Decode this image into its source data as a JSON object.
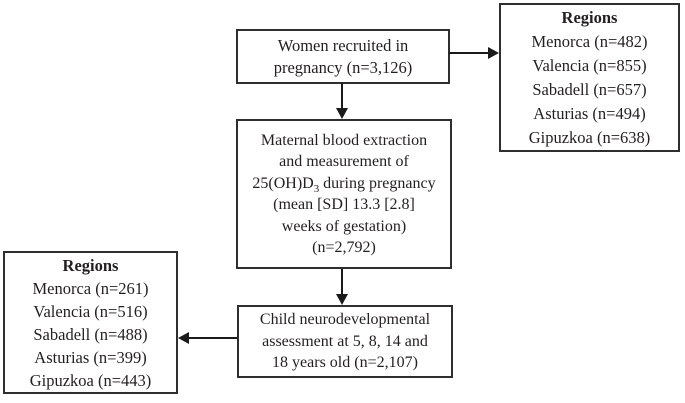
{
  "colors": {
    "text": "#231f20",
    "box_border": "#2e2e2e",
    "arrow": "#1a1a1a",
    "background": "#ffffff"
  },
  "boxes": {
    "recruited": {
      "line1": "Women recruited in",
      "line2": "pregnancy (n=3,126)"
    },
    "regions_top": {
      "title": "Regions",
      "items": [
        "Menorca (n=482)",
        "Valencia (n=855)",
        "Sabadell (n=657)",
        "Asturias (n=494)",
        "Gipuzkoa (n=638)"
      ]
    },
    "blood": {
      "line1": "Maternal blood extraction",
      "line2": "and measurement of",
      "line3_prefix": "25(OH)D",
      "line3_sub": "3",
      "line3_suffix": " during pregnancy",
      "line4": "(mean [SD] 13.3 [2.8]",
      "line5": "weeks of gestation)",
      "line6": "(n=2,792)"
    },
    "regions_bottom": {
      "title": "Regions",
      "items": [
        "Menorca (n=261)",
        "Valencia (n=516)",
        "Sabadell (n=488)",
        "Asturias (n=399)",
        "Gipuzkoa (n=443)"
      ]
    },
    "assessment": {
      "line1": "Child neurodevelopmental",
      "line2": "assessment at 5, 8, 14 and",
      "line3": "18 years old (n=2,107)"
    }
  }
}
